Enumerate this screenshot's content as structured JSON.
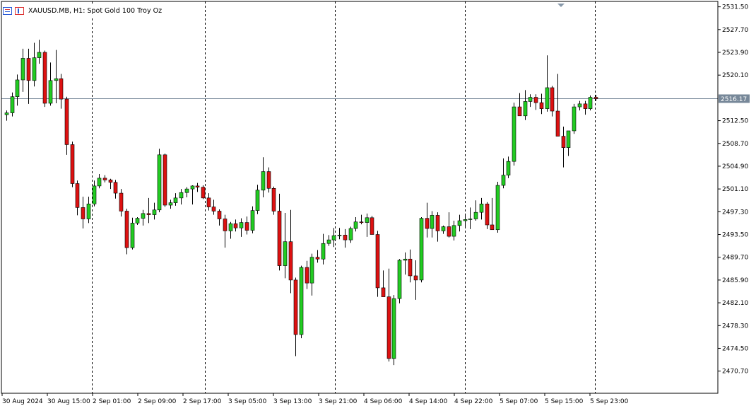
{
  "header": {
    "symbol_title": "XAUUSD.MB, H1:  Spot Gold 100 Troy Oz"
  },
  "colors": {
    "bull": "#22cc22",
    "bear": "#dd1111",
    "wick": "#000000",
    "grid": "#000000",
    "price_line": "#778899",
    "price_tag_bg": "#778899"
  },
  "chart_data": {
    "type": "candlestick",
    "title": "XAUUSD.MB, H1:  Spot Gold 100 Troy Oz",
    "ylim": [
      2467.0,
      2532.4
    ],
    "y_ticks": [
      "2531.50",
      "2527.70",
      "2523.90",
      "2520.10",
      "2516.17",
      "2512.50",
      "2508.70",
      "2504.90",
      "2501.10",
      "2497.30",
      "2493.50",
      "2489.70",
      "2485.90",
      "2482.10",
      "2478.30",
      "2474.50",
      "2470.70"
    ],
    "current_price": "2516.17",
    "x_labels": [
      "30 Aug 2024",
      "30 Aug 15:00",
      "2 Sep 01:00",
      "2 Sep 09:00",
      "2 Sep 17:00",
      "3 Sep 05:00",
      "3 Sep 13:00",
      "3 Sep 21:00",
      "4 Sep 06:00",
      "4 Sep 14:00",
      "4 Sep 22:00",
      "5 Sep 07:00",
      "5 Sep 15:00",
      "5 Sep 23:00"
    ],
    "session_separators_after_label_index": [
      1,
      4,
      7,
      10,
      12
    ],
    "candles": [
      [
        2513.5,
        2514.2,
        2512.5,
        2513.8
      ],
      [
        2513.8,
        2517.2,
        2513.2,
        2516.5
      ],
      [
        2516.5,
        2520.2,
        2515.0,
        2519.3
      ],
      [
        2519.3,
        2524.5,
        2517.3,
        2522.9
      ],
      [
        2522.9,
        2524.5,
        2515.3,
        2519.2
      ],
      [
        2519.2,
        2525.5,
        2518.2,
        2523.0
      ],
      [
        2523.0,
        2526.0,
        2522.0,
        2523.9
      ],
      [
        2523.9,
        2524.2,
        2514.8,
        2515.4
      ],
      [
        2515.4,
        2522.2,
        2515.0,
        2519.2
      ],
      [
        2519.2,
        2524.3,
        2515.4,
        2519.5
      ],
      [
        2519.5,
        2520.3,
        2514.5,
        2516.1
      ],
      [
        2516.1,
        2516.5,
        2506.8,
        2508.5
      ],
      [
        2508.5,
        2509.0,
        2501.4,
        2502.0
      ],
      [
        2502.0,
        2502.5,
        2496.7,
        2498.0
      ],
      [
        2498.0,
        2499.8,
        2494.5,
        2496.1
      ],
      [
        2496.1,
        2499.8,
        2495.4,
        2498.6
      ],
      [
        2498.6,
        2502.5,
        2498.2,
        2501.6
      ],
      [
        2501.6,
        2503.6,
        2501.2,
        2502.9
      ],
      [
        2502.9,
        2503.4,
        2502.2,
        2502.6
      ],
      [
        2502.6,
        2502.8,
        2501.1,
        2502.2
      ],
      [
        2502.2,
        2502.6,
        2499.5,
        2500.4
      ],
      [
        2500.4,
        2501.1,
        2496.5,
        2497.4
      ],
      [
        2497.4,
        2497.8,
        2490.2,
        2491.3
      ],
      [
        2491.3,
        2496.3,
        2491.0,
        2495.4
      ],
      [
        2495.4,
        2496.4,
        2495.1,
        2496.2
      ],
      [
        2496.2,
        2497.6,
        2495.0,
        2497.0
      ],
      [
        2497.0,
        2499.6,
        2495.4,
        2496.8
      ],
      [
        2496.8,
        2498.8,
        2496.0,
        2497.6
      ],
      [
        2497.6,
        2507.8,
        2497.2,
        2506.8
      ],
      [
        2506.8,
        2507.0,
        2498.1,
        2498.4
      ],
      [
        2498.4,
        2499.3,
        2497.8,
        2498.8
      ],
      [
        2498.8,
        2500.4,
        2498.3,
        2499.6
      ],
      [
        2499.6,
        2501.1,
        2498.5,
        2500.5
      ],
      [
        2500.5,
        2501.4,
        2499.7,
        2501.1
      ],
      [
        2501.1,
        2501.7,
        2498.5,
        2501.6
      ],
      [
        2501.6,
        2502.1,
        2500.6,
        2501.4
      ],
      [
        2501.4,
        2501.7,
        2499.4,
        2499.6
      ],
      [
        2499.6,
        2500.4,
        2497.5,
        2498.1
      ],
      [
        2498.1,
        2499.3,
        2496.8,
        2497.4
      ],
      [
        2497.4,
        2497.7,
        2495.0,
        2496.1
      ],
      [
        2496.1,
        2496.8,
        2491.3,
        2494.1
      ],
      [
        2494.1,
        2495.6,
        2492.8,
        2495.3
      ],
      [
        2495.3,
        2496.0,
        2494.0,
        2494.6
      ],
      [
        2494.6,
        2496.2,
        2493.1,
        2495.5
      ],
      [
        2495.5,
        2496.5,
        2493.5,
        2494.2
      ],
      [
        2494.2,
        2498.2,
        2493.7,
        2497.5
      ],
      [
        2497.5,
        2501.8,
        2496.9,
        2500.9
      ],
      [
        2500.9,
        2506.4,
        2499.7,
        2504.0
      ],
      [
        2504.0,
        2504.7,
        2500.5,
        2501.2
      ],
      [
        2501.2,
        2501.5,
        2496.8,
        2497.4
      ],
      [
        2497.4,
        2500.3,
        2487.5,
        2488.3
      ],
      [
        2488.3,
        2497.1,
        2486.2,
        2492.3
      ],
      [
        2492.3,
        2497.6,
        2483.7,
        2485.9
      ],
      [
        2485.9,
        2486.3,
        2473.2,
        2476.8
      ],
      [
        2476.8,
        2488.3,
        2476.2,
        2488.0
      ],
      [
        2488.0,
        2489.1,
        2484.4,
        2485.4
      ],
      [
        2485.4,
        2490.3,
        2483.3,
        2489.7
      ],
      [
        2489.7,
        2490.9,
        2488.8,
        2489.4
      ],
      [
        2489.4,
        2493.6,
        2488.5,
        2492.0
      ],
      [
        2492.0,
        2493.4,
        2491.6,
        2492.6
      ],
      [
        2492.6,
        2494.6,
        2491.4,
        2493.3
      ],
      [
        2493.3,
        2494.6,
        2492.7,
        2493.4
      ],
      [
        2493.4,
        2494.4,
        2491.3,
        2492.6
      ],
      [
        2492.6,
        2494.8,
        2492.1,
        2494.5
      ],
      [
        2494.5,
        2496.4,
        2494.0,
        2495.6
      ],
      [
        2495.6,
        2496.8,
        2495.2,
        2495.5
      ],
      [
        2495.5,
        2497.0,
        2493.1,
        2496.3
      ],
      [
        2496.3,
        2496.6,
        2493.7,
        2493.5
      ],
      [
        2493.5,
        2494.1,
        2483.1,
        2484.6
      ],
      [
        2484.6,
        2487.5,
        2483.4,
        2483.1
      ],
      [
        2483.1,
        2487.8,
        2472.3,
        2472.8
      ],
      [
        2472.8,
        2483.4,
        2471.7,
        2482.8
      ],
      [
        2482.8,
        2489.4,
        2482.0,
        2489.2
      ],
      [
        2489.2,
        2490.5,
        2486.8,
        2489.4
      ],
      [
        2489.4,
        2491.0,
        2485.5,
        2486.6
      ],
      [
        2486.6,
        2489.2,
        2482.6,
        2485.9
      ],
      [
        2485.9,
        2496.4,
        2485.5,
        2496.2
      ],
      [
        2496.2,
        2498.8,
        2493.0,
        2494.5
      ],
      [
        2494.5,
        2497.4,
        2493.0,
        2496.7
      ],
      [
        2496.7,
        2497.2,
        2492.3,
        2494.1
      ],
      [
        2494.1,
        2495.0,
        2493.6,
        2494.8
      ],
      [
        2494.8,
        2497.2,
        2493.0,
        2493.2
      ],
      [
        2493.2,
        2495.8,
        2492.5,
        2495.0
      ],
      [
        2495.0,
        2496.8,
        2494.0,
        2495.8
      ],
      [
        2495.8,
        2497.0,
        2494.8,
        2496.0
      ],
      [
        2496.0,
        2498.0,
        2494.4,
        2496.1
      ],
      [
        2496.1,
        2499.2,
        2495.8,
        2497.2
      ],
      [
        2497.2,
        2499.6,
        2496.0,
        2498.6
      ],
      [
        2498.6,
        2498.9,
        2494.4,
        2495.1
      ],
      [
        2495.1,
        2499.6,
        2494.7,
        2494.3
      ],
      [
        2494.3,
        2502.3,
        2493.8,
        2501.7
      ],
      [
        2501.7,
        2506.2,
        2501.2,
        2503.4
      ],
      [
        2503.4,
        2506.5,
        2502.9,
        2505.7
      ],
      [
        2505.7,
        2515.5,
        2505.0,
        2514.8
      ],
      [
        2514.8,
        2517.1,
        2513.5,
        2513.3
      ],
      [
        2513.3,
        2517.6,
        2512.6,
        2515.7
      ],
      [
        2515.7,
        2516.9,
        2514.8,
        2516.4
      ],
      [
        2516.4,
        2516.9,
        2514.3,
        2515.5
      ],
      [
        2515.5,
        2517.0,
        2513.6,
        2514.5
      ],
      [
        2514.5,
        2523.4,
        2514.0,
        2518.0
      ],
      [
        2518.0,
        2518.3,
        2513.2,
        2514.1
      ],
      [
        2514.1,
        2520.3,
        2510.2,
        2509.9
      ],
      [
        2509.9,
        2511.5,
        2504.7,
        2508.0
      ],
      [
        2508.0,
        2510.3,
        2506.6,
        2510.8
      ],
      [
        2510.8,
        2515.3,
        2510.3,
        2514.8
      ],
      [
        2514.8,
        2515.8,
        2514.2,
        2515.3
      ],
      [
        2515.3,
        2515.8,
        2513.5,
        2514.5
      ],
      [
        2514.5,
        2516.7,
        2514.2,
        2516.4
      ],
      [
        2516.4,
        2516.8,
        2515.8,
        2516.17
      ]
    ]
  }
}
